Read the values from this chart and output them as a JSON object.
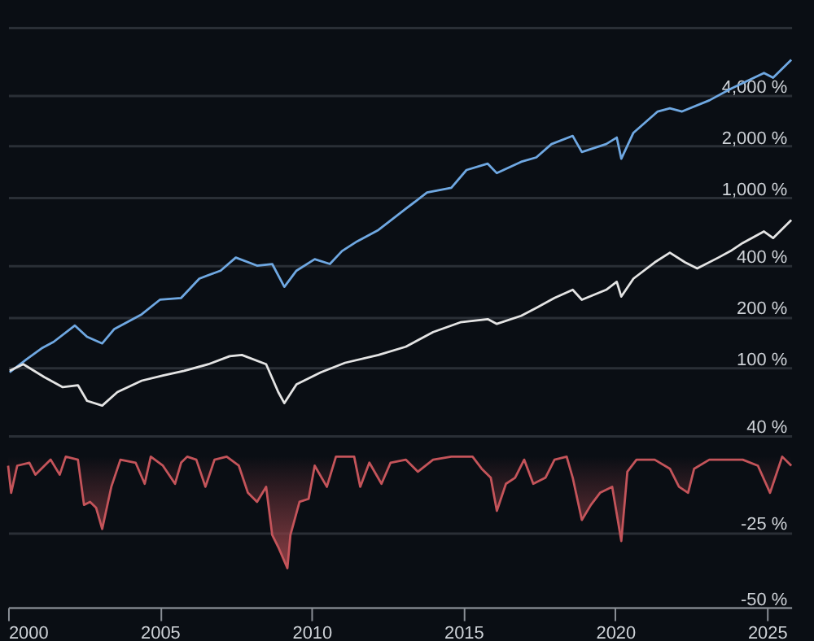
{
  "chart_data": [
    {
      "type": "line",
      "log": true,
      "grid": "y",
      "tick_labels": "y",
      "line_style": "solid",
      "marker": "none",
      "xlim": [
        2000,
        2025.8
      ],
      "xticks": [
        2000,
        2005,
        2010,
        2015,
        2020,
        2025
      ],
      "ylim": [
        40,
        10000
      ],
      "yticks": [
        {
          "value": 40,
          "label": "40 %"
        },
        {
          "value": 100,
          "label": "100 %"
        },
        {
          "value": 200,
          "label": "200 %"
        },
        {
          "value": 400,
          "label": "400 %"
        },
        {
          "value": 1000,
          "label": "1,000 %"
        },
        {
          "value": 2000,
          "label": "2,000 %"
        },
        {
          "value": 4000,
          "label": "4,000 %"
        },
        {
          "value": 10000,
          "label": null
        }
      ],
      "series": [
        {
          "color": "#6fa8e2",
          "x": [
            2000.05,
            2000.6,
            2001.1,
            2001.5,
            2002.2,
            2002.6,
            2003.1,
            2003.5,
            2004.4,
            2005.0,
            2005.7,
            2006.3,
            2007.0,
            2007.5,
            2008.2,
            2008.7,
            2009.1,
            2009.5,
            2010.1,
            2010.6,
            2011.0,
            2011.5,
            2012.2,
            2013.1,
            2013.8,
            2014.6,
            2015.1,
            2015.8,
            2016.1,
            2016.9,
            2017.4,
            2017.9,
            2018.6,
            2018.9,
            2019.7,
            2020.05,
            2020.2,
            2020.6,
            2021.4,
            2021.8,
            2022.2,
            2023.1,
            2023.8,
            2024.9,
            2025.2,
            2025.8
          ],
          "values": [
            94,
            112,
            130,
            142,
            177,
            152,
            139,
            169,
            206,
            251,
            257,
            334,
            372,
            444,
            398,
            407,
            299,
            372,
            434,
            407,
            485,
            553,
            645,
            858,
            1070,
            1140,
            1450,
            1580,
            1390,
            1620,
            1720,
            2060,
            2300,
            1850,
            2060,
            2250,
            1690,
            2400,
            3200,
            3340,
            3200,
            3720,
            4340,
            5390,
            5050,
            6440
          ]
        },
        {
          "color": "#e4e4e4",
          "x": [
            2000.05,
            2000.5,
            2001.2,
            2001.8,
            2002.3,
            2002.6,
            2003.1,
            2003.6,
            2004.4,
            2005.1,
            2005.8,
            2006.6,
            2007.3,
            2007.7,
            2008.5,
            2008.9,
            2009.1,
            2009.5,
            2010.3,
            2011.1,
            2012.2,
            2013.1,
            2014.0,
            2014.9,
            2015.8,
            2016.1,
            2016.9,
            2017.4,
            2018.0,
            2018.6,
            2018.9,
            2019.7,
            2020.05,
            2020.2,
            2020.6,
            2021.3,
            2021.8,
            2022.3,
            2022.7,
            2023.4,
            2023.8,
            2024.2,
            2024.9,
            2025.2,
            2025.8
          ],
          "values": [
            96,
            105,
            88,
            77,
            79,
            64,
            60,
            72,
            84,
            90,
            96,
            105,
            117,
            119,
            105,
            72,
            62,
            80,
            94,
            107,
            119,
            133,
            162,
            185,
            193,
            181,
            202,
            225,
            257,
            287,
            251,
            287,
            320,
            262,
            334,
            416,
            474,
            416,
            383,
            444,
            485,
            541,
            632,
            578,
            737
          ]
        }
      ]
    },
    {
      "type": "area",
      "grid": "y",
      "line_style": "solid",
      "marker": "none",
      "xlim": [
        2000,
        2025.8
      ],
      "xticks": [
        2000,
        2005,
        2010,
        2015,
        2020,
        2025
      ],
      "ylim": [
        -50,
        7
      ],
      "yticks": [
        {
          "value": -25,
          "label": "-25 %"
        },
        {
          "value": -50,
          "label": "-50 %"
        }
      ],
      "series": [
        {
          "color": "#c4545a",
          "x": [
            2000.0,
            2000.1,
            2000.3,
            2000.7,
            2000.9,
            2001.4,
            2001.7,
            2001.9,
            2002.3,
            2002.5,
            2002.7,
            2002.9,
            2003.1,
            2003.4,
            2003.7,
            2004.2,
            2004.5,
            2004.7,
            2005.1,
            2005.5,
            2005.7,
            2005.9,
            2006.2,
            2006.5,
            2006.8,
            2007.2,
            2007.6,
            2007.9,
            2008.2,
            2008.5,
            2008.7,
            2008.9,
            2009.2,
            2009.3,
            2009.6,
            2009.9,
            2010.1,
            2010.5,
            2010.8,
            2011.4,
            2011.6,
            2011.9,
            2012.3,
            2012.6,
            2013.1,
            2013.5,
            2014.0,
            2014.6,
            2015.3,
            2015.6,
            2015.9,
            2016.1,
            2016.4,
            2016.7,
            2017.0,
            2017.3,
            2017.7,
            2018.0,
            2018.4,
            2018.6,
            2018.9,
            2019.2,
            2019.5,
            2019.9,
            2020.2,
            2020.4,
            2020.7,
            2021.3,
            2021.8,
            2022.1,
            2022.4,
            2022.6,
            2023.1,
            2023.6,
            2024.2,
            2024.7,
            2025.1,
            2025.4,
            2025.5,
            2025.8
          ],
          "values": [
            -3,
            -12,
            -3,
            -2,
            -6,
            -1,
            -6,
            0,
            -1,
            -16,
            -15,
            -17,
            -24,
            -10,
            -1,
            -2,
            -9,
            0,
            -3,
            -9,
            -2,
            0,
            -1,
            -10,
            -1,
            0,
            -3,
            -12,
            -15,
            -10,
            -26,
            -30,
            -37,
            -26,
            -15,
            -14,
            -3,
            -10,
            0,
            0,
            -10,
            -2,
            -9,
            -2,
            -1,
            -5,
            -1,
            0,
            0,
            -4,
            -7,
            -18,
            -9,
            -7,
            -1,
            -9,
            -7,
            -1,
            0,
            -7,
            -21,
            -16,
            -12,
            -10,
            -28,
            -5,
            -1,
            -1,
            -4,
            -10,
            -12,
            -4,
            -1,
            -1,
            -1,
            -3,
            -12,
            -3,
            0,
            -3
          ]
        }
      ]
    }
  ]
}
